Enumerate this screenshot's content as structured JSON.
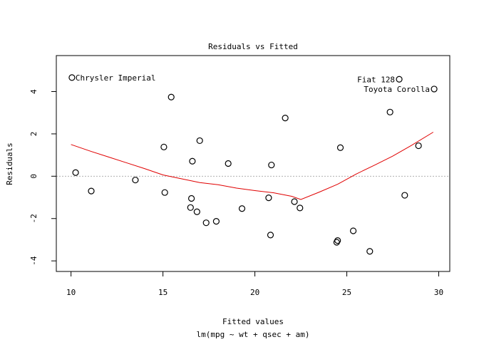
{
  "chart_data": {
    "type": "scatter",
    "title": "Residuals vs Fitted",
    "xlabel": "Fitted values",
    "subtitle": "lm(mpg ~ wt + qsec + am)",
    "ylabel": "Residuals",
    "xlim": [
      9.2,
      30.6
    ],
    "ylim": [
      -4.5,
      5.7
    ],
    "xticks": [
      10,
      15,
      20,
      25,
      30
    ],
    "yticks": [
      -4,
      -2,
      0,
      2,
      4
    ],
    "xtick_labels": [
      "10",
      "15",
      "20",
      "25",
      "30"
    ],
    "ytick_labels": [
      "-4",
      "-2",
      "0",
      "2",
      "4"
    ],
    "reference_line_y": 0,
    "grid": false,
    "colors": {
      "points": "#000000",
      "smooth": "#e00000",
      "reference": "#b0b0b0"
    },
    "points": [
      {
        "x": 10.05,
        "y": 4.66
      },
      {
        "x": 10.25,
        "y": 0.17
      },
      {
        "x": 11.1,
        "y": -0.7
      },
      {
        "x": 13.5,
        "y": -0.18
      },
      {
        "x": 15.05,
        "y": 1.38
      },
      {
        "x": 15.1,
        "y": -0.77
      },
      {
        "x": 15.45,
        "y": 3.74
      },
      {
        "x": 16.5,
        "y": -1.48
      },
      {
        "x": 16.55,
        "y": -1.05
      },
      {
        "x": 16.6,
        "y": 0.71
      },
      {
        "x": 16.85,
        "y": -1.68
      },
      {
        "x": 17.0,
        "y": 1.68
      },
      {
        "x": 17.35,
        "y": -2.2
      },
      {
        "x": 17.9,
        "y": -2.13
      },
      {
        "x": 18.55,
        "y": 0.6
      },
      {
        "x": 19.3,
        "y": -1.53
      },
      {
        "x": 20.75,
        "y": -1.02
      },
      {
        "x": 20.85,
        "y": -2.78
      },
      {
        "x": 20.9,
        "y": 0.53
      },
      {
        "x": 21.65,
        "y": 2.75
      },
      {
        "x": 22.15,
        "y": -1.2
      },
      {
        "x": 22.45,
        "y": -1.5
      },
      {
        "x": 24.45,
        "y": -3.12
      },
      {
        "x": 24.5,
        "y": -3.04
      },
      {
        "x": 24.65,
        "y": 1.35
      },
      {
        "x": 25.35,
        "y": -2.58
      },
      {
        "x": 26.25,
        "y": -3.55
      },
      {
        "x": 27.35,
        "y": 3.03
      },
      {
        "x": 27.85,
        "y": 4.58
      },
      {
        "x": 28.15,
        "y": -0.9
      },
      {
        "x": 28.9,
        "y": 1.44
      },
      {
        "x": 29.75,
        "y": 4.12
      }
    ],
    "point_labels": [
      {
        "text": "Chrysler Imperial",
        "x": 10.05,
        "y": 4.66,
        "side": "right"
      },
      {
        "text": "Fiat 128",
        "x": 27.85,
        "y": 4.58,
        "side": "left"
      },
      {
        "text": "Toyota Corolla",
        "x": 29.75,
        "y": 4.12,
        "side": "left"
      }
    ],
    "smooth_line": [
      {
        "x": 10.0,
        "y": 1.5
      },
      {
        "x": 11.0,
        "y": 1.2
      },
      {
        "x": 12.0,
        "y": 0.92
      },
      {
        "x": 13.0,
        "y": 0.64
      },
      {
        "x": 14.0,
        "y": 0.36
      },
      {
        "x": 15.0,
        "y": 0.06
      },
      {
        "x": 16.0,
        "y": -0.12
      },
      {
        "x": 17.0,
        "y": -0.3
      },
      {
        "x": 18.0,
        "y": -0.4
      },
      {
        "x": 19.0,
        "y": -0.56
      },
      {
        "x": 20.0,
        "y": -0.68
      },
      {
        "x": 21.0,
        "y": -0.78
      },
      {
        "x": 22.0,
        "y": -0.95
      },
      {
        "x": 22.5,
        "y": -1.1
      },
      {
        "x": 23.5,
        "y": -0.75
      },
      {
        "x": 24.5,
        "y": -0.38
      },
      {
        "x": 25.5,
        "y": 0.1
      },
      {
        "x": 26.5,
        "y": 0.52
      },
      {
        "x": 27.5,
        "y": 0.95
      },
      {
        "x": 28.5,
        "y": 1.45
      },
      {
        "x": 29.7,
        "y": 2.08
      }
    ]
  }
}
